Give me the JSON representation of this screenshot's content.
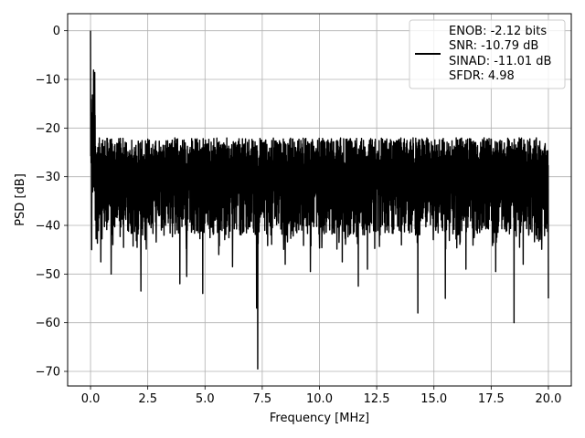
{
  "chart_data": {
    "type": "line",
    "title": "",
    "xlabel": "Frequency [MHz]",
    "ylabel": "PSD [dB]",
    "xlim": [
      -1.0,
      21.0
    ],
    "ylim": [
      -73.0,
      3.5
    ],
    "grid": true,
    "legend_placement": "top-right",
    "xticks": [
      0.0,
      2.5,
      5.0,
      7.5,
      10.0,
      12.5,
      15.0,
      17.5,
      20.0
    ],
    "xtick_labels": [
      "0.0",
      "2.5",
      "5.0",
      "7.5",
      "10.0",
      "12.5",
      "15.0",
      "17.5",
      "20.0"
    ],
    "yticks": [
      0,
      -10,
      -20,
      -30,
      -40,
      -50,
      -60,
      -70
    ],
    "ytick_labels": [
      "0",
      "−10",
      "−20",
      "−30",
      "−40",
      "−50",
      "−60",
      "−70"
    ],
    "series": [
      {
        "name": "ENOB: -2.12 bits\nSNR: -10.79 dB\nSINAD: -11.01 dB\nSFDR: 4.98",
        "color": "#000000",
        "x_range": [
          0.0,
          20.0
        ],
        "peak": {
          "x": 0.0,
          "y": 0.0
        },
        "upper_envelope_dB": -22,
        "lower_envelope_dB": -42,
        "mean_dB": -30,
        "deep_nulls": [
          {
            "x": 0.05,
            "y": -45
          },
          {
            "x": 0.45,
            "y": -47.5
          },
          {
            "x": 0.9,
            "y": -50
          },
          {
            "x": 2.2,
            "y": -53.5
          },
          {
            "x": 3.9,
            "y": -52
          },
          {
            "x": 4.2,
            "y": -50.5
          },
          {
            "x": 4.9,
            "y": -54
          },
          {
            "x": 5.6,
            "y": -46
          },
          {
            "x": 6.2,
            "y": -48.5
          },
          {
            "x": 7.3,
            "y": -69.5
          },
          {
            "x": 7.25,
            "y": -57
          },
          {
            "x": 8.5,
            "y": -48
          },
          {
            "x": 9.6,
            "y": -49.5
          },
          {
            "x": 11.0,
            "y": -47.5
          },
          {
            "x": 11.7,
            "y": -52.5
          },
          {
            "x": 12.1,
            "y": -49
          },
          {
            "x": 14.3,
            "y": -58
          },
          {
            "x": 15.5,
            "y": -55
          },
          {
            "x": 16.4,
            "y": -49
          },
          {
            "x": 17.7,
            "y": -49.5
          },
          {
            "x": 18.5,
            "y": -60
          },
          {
            "x": 18.9,
            "y": -48
          },
          {
            "x": 20.0,
            "y": -55
          }
        ]
      }
    ],
    "legend": {
      "lines": [
        "ENOB: -2.12 bits",
        "SNR: -10.79 dB",
        "SINAD: -11.01 dB",
        "SFDR: 4.98"
      ]
    }
  }
}
